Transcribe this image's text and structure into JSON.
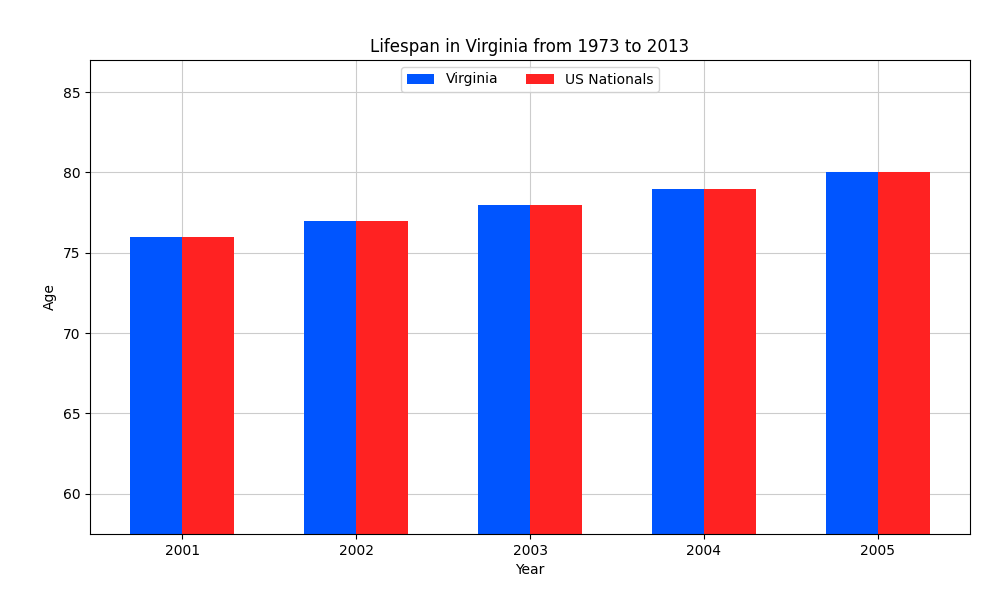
{
  "chart_data": {
    "type": "bar",
    "title": "Lifespan in Virginia from 1973 to 2013",
    "x_label": "Year",
    "y_label": "Age",
    "categories": [
      "2001",
      "2002",
      "2003",
      "2004",
      "2005"
    ],
    "series": [
      {
        "name": "Virginia",
        "color": "#0055ff",
        "values": [
          76,
          77,
          78,
          79,
          80
        ]
      },
      {
        "name": "US Nationals",
        "color": "#ff2222",
        "values": [
          76,
          77,
          78,
          79,
          80
        ]
      }
    ],
    "ylim": [
      57.5,
      87
    ],
    "yticks": [
      60,
      65,
      70,
      75,
      80,
      85
    ],
    "grid": true,
    "legend": "upper center"
  }
}
